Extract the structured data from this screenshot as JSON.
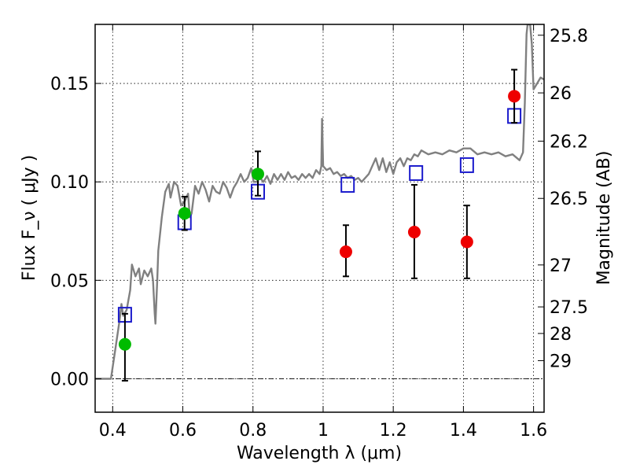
{
  "chart_data": {
    "type": "scatter",
    "xlabel": "Wavelength  λ (μm)",
    "ylabel": "Flux  F_ν  ( μJy )",
    "y2label": "Magnitude (AB)",
    "xlim": [
      0.35,
      1.63
    ],
    "ylim": [
      -0.017,
      0.18
    ],
    "grid": true,
    "x_ticks": [
      0.4,
      0.6,
      0.8,
      1.0,
      1.2,
      1.4,
      1.6
    ],
    "x_tick_labels": [
      "0.4",
      "0.6",
      "0.8",
      "1",
      "1.2",
      "1.4",
      "1.6"
    ],
    "y_ticks": [
      0.0,
      0.05,
      0.1,
      0.15
    ],
    "y_tick_labels": [
      "0.00",
      "0.05",
      "0.10",
      "0.15"
    ],
    "y2_ticks": [
      {
        "label": "25.8",
        "flux": 0.1745
      },
      {
        "label": "26",
        "flux": 0.1452
      },
      {
        "label": "26.2",
        "flux": 0.1207
      },
      {
        "label": "26.5",
        "flux": 0.0916
      },
      {
        "label": "27",
        "flux": 0.0578
      },
      {
        "label": "27.5",
        "flux": 0.0365
      },
      {
        "label": "28",
        "flux": 0.023
      },
      {
        "label": "29",
        "flux": 0.0092
      }
    ],
    "zero_line": 0.0,
    "series": [
      {
        "marker": "filled-circle",
        "color": "#00bb00",
        "points": [
          {
            "x": 0.435,
            "y": 0.0175,
            "yerr_low": 0.0185,
            "yerr_high": 0.0155
          },
          {
            "x": 0.605,
            "y": 0.084,
            "yerr_low": 0.0085,
            "yerr_high": 0.0085
          },
          {
            "x": 0.814,
            "y": 0.104,
            "yerr_low": 0.011,
            "yerr_high": 0.0115
          }
        ]
      },
      {
        "marker": "filled-circle",
        "color": "#ee0000",
        "points": [
          {
            "x": 1.065,
            "y": 0.0645,
            "yerr_low": 0.0125,
            "yerr_high": 0.0135
          },
          {
            "x": 1.26,
            "y": 0.0745,
            "yerr_low": 0.0235,
            "yerr_high": 0.024
          },
          {
            "x": 1.41,
            "y": 0.0695,
            "yerr_low": 0.0185,
            "yerr_high": 0.0185
          },
          {
            "x": 1.545,
            "y": 0.1435,
            "yerr_low": 0.0135,
            "yerr_high": 0.0135
          }
        ]
      },
      {
        "marker": "open-square",
        "color": "#1a1acc",
        "points": [
          {
            "x": 0.435,
            "y": 0.0325
          },
          {
            "x": 0.605,
            "y": 0.0795
          },
          {
            "x": 0.814,
            "y": 0.095
          },
          {
            "x": 1.07,
            "y": 0.0985
          },
          {
            "x": 1.265,
            "y": 0.1045
          },
          {
            "x": 1.41,
            "y": 0.1085
          },
          {
            "x": 1.545,
            "y": 0.1335
          }
        ]
      }
    ],
    "model_spectrum": {
      "color": "#808080",
      "points": [
        [
          0.35,
          0.0
        ],
        [
          0.38,
          0.0
        ],
        [
          0.395,
          0.0
        ],
        [
          0.41,
          0.018
        ],
        [
          0.42,
          0.03
        ],
        [
          0.425,
          0.038
        ],
        [
          0.43,
          0.032
        ],
        [
          0.44,
          0.035
        ],
        [
          0.45,
          0.045
        ],
        [
          0.455,
          0.058
        ],
        [
          0.465,
          0.052
        ],
        [
          0.475,
          0.056
        ],
        [
          0.48,
          0.048
        ],
        [
          0.49,
          0.055
        ],
        [
          0.5,
          0.052
        ],
        [
          0.51,
          0.056
        ],
        [
          0.515,
          0.05
        ],
        [
          0.52,
          0.033
        ],
        [
          0.522,
          0.028
        ],
        [
          0.527,
          0.05
        ],
        [
          0.53,
          0.065
        ],
        [
          0.54,
          0.082
        ],
        [
          0.55,
          0.095
        ],
        [
          0.56,
          0.099
        ],
        [
          0.565,
          0.092
        ],
        [
          0.575,
          0.1
        ],
        [
          0.585,
          0.098
        ],
        [
          0.595,
          0.088
        ],
        [
          0.605,
          0.09
        ],
        [
          0.615,
          0.094
        ],
        [
          0.62,
          0.082
        ],
        [
          0.625,
          0.084
        ],
        [
          0.635,
          0.098
        ],
        [
          0.645,
          0.094
        ],
        [
          0.655,
          0.1
        ],
        [
          0.665,
          0.096
        ],
        [
          0.675,
          0.09
        ],
        [
          0.685,
          0.098
        ],
        [
          0.695,
          0.095
        ],
        [
          0.705,
          0.094
        ],
        [
          0.715,
          0.1
        ],
        [
          0.725,
          0.097
        ],
        [
          0.735,
          0.092
        ],
        [
          0.745,
          0.097
        ],
        [
          0.755,
          0.1
        ],
        [
          0.765,
          0.104
        ],
        [
          0.775,
          0.1
        ],
        [
          0.785,
          0.102
        ],
        [
          0.795,
          0.107
        ],
        [
          0.802,
          0.1
        ],
        [
          0.81,
          0.1
        ],
        [
          0.82,
          0.102
        ],
        [
          0.83,
          0.1
        ],
        [
          0.84,
          0.103
        ],
        [
          0.85,
          0.099
        ],
        [
          0.86,
          0.104
        ],
        [
          0.87,
          0.101
        ],
        [
          0.88,
          0.104
        ],
        [
          0.89,
          0.101
        ],
        [
          0.9,
          0.105
        ],
        [
          0.91,
          0.102
        ],
        [
          0.92,
          0.103
        ],
        [
          0.93,
          0.101
        ],
        [
          0.94,
          0.104
        ],
        [
          0.95,
          0.102
        ],
        [
          0.96,
          0.104
        ],
        [
          0.97,
          0.102
        ],
        [
          0.98,
          0.106
        ],
        [
          0.99,
          0.104
        ],
        [
          0.995,
          0.108
        ],
        [
          0.997,
          0.132
        ],
        [
          1.0,
          0.108
        ],
        [
          1.01,
          0.106
        ],
        [
          1.02,
          0.107
        ],
        [
          1.03,
          0.104
        ],
        [
          1.04,
          0.105
        ],
        [
          1.05,
          0.103
        ],
        [
          1.06,
          0.104
        ],
        [
          1.07,
          0.102
        ],
        [
          1.08,
          0.103
        ],
        [
          1.09,
          0.101
        ],
        [
          1.1,
          0.102
        ],
        [
          1.11,
          0.1
        ],
        [
          1.12,
          0.102
        ],
        [
          1.13,
          0.104
        ],
        [
          1.14,
          0.108
        ],
        [
          1.15,
          0.112
        ],
        [
          1.16,
          0.106
        ],
        [
          1.17,
          0.112
        ],
        [
          1.18,
          0.105
        ],
        [
          1.19,
          0.11
        ],
        [
          1.2,
          0.104
        ],
        [
          1.21,
          0.11
        ],
        [
          1.22,
          0.112
        ],
        [
          1.23,
          0.108
        ],
        [
          1.24,
          0.112
        ],
        [
          1.25,
          0.111
        ],
        [
          1.26,
          0.114
        ],
        [
          1.27,
          0.113
        ],
        [
          1.28,
          0.116
        ],
        [
          1.29,
          0.115
        ],
        [
          1.3,
          0.114
        ],
        [
          1.32,
          0.115
        ],
        [
          1.34,
          0.114
        ],
        [
          1.36,
          0.116
        ],
        [
          1.38,
          0.115
        ],
        [
          1.4,
          0.117
        ],
        [
          1.42,
          0.117
        ],
        [
          1.44,
          0.114
        ],
        [
          1.46,
          0.115
        ],
        [
          1.48,
          0.114
        ],
        [
          1.5,
          0.115
        ],
        [
          1.52,
          0.113
        ],
        [
          1.54,
          0.114
        ],
        [
          1.56,
          0.111
        ],
        [
          1.57,
          0.115
        ],
        [
          1.575,
          0.14
        ],
        [
          1.58,
          0.175
        ],
        [
          1.583,
          0.18
        ],
        [
          1.59,
          0.18
        ],
        [
          1.595,
          0.17
        ],
        [
          1.6,
          0.147
        ],
        [
          1.61,
          0.15
        ],
        [
          1.62,
          0.153
        ],
        [
          1.63,
          0.152
        ]
      ]
    }
  }
}
